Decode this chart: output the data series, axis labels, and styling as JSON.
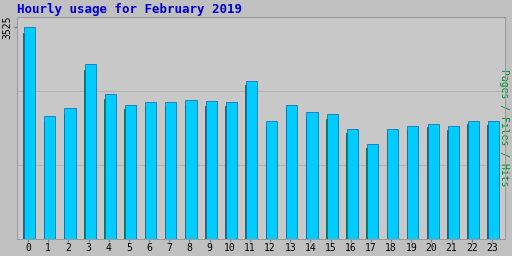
{
  "title": "Hourly usage for February 2019",
  "title_color": "#0000cc",
  "title_fontsize": 9,
  "ylabel_right": "Pages / Files / Hits",
  "hours": [
    0,
    1,
    2,
    3,
    4,
    5,
    6,
    7,
    8,
    9,
    10,
    11,
    12,
    13,
    14,
    15,
    16,
    17,
    18,
    19,
    20,
    21,
    22,
    23
  ],
  "pages": [
    3525,
    2050,
    2180,
    2920,
    2420,
    2240,
    2290,
    2290,
    2320,
    2300,
    2290,
    2640,
    1960,
    2240,
    2110,
    2080,
    1830,
    1580,
    1840,
    1880,
    1920,
    1880,
    1970,
    1960
  ],
  "files": [
    3440,
    1960,
    2090,
    2820,
    2330,
    2160,
    2210,
    2210,
    2240,
    2220,
    2210,
    2560,
    1880,
    2160,
    2030,
    2000,
    1760,
    1510,
    1760,
    1820,
    1860,
    1820,
    1910,
    1900
  ],
  "bar_color_pages": "#00ccff",
  "bar_color_files": "#008866",
  "bar_edgecolor_pages": "#0066aa",
  "bar_edgecolor_files": "#005544",
  "background_color": "#c0c0c0",
  "plot_bg_color": "#c8c8c8",
  "ylim": [
    0,
    3700
  ],
  "ytick_value": 3525,
  "ytick_label": "3525",
  "grid_color": "#b0b0b0",
  "ylabel_color": "#008833",
  "ylabel_fontsize": 7,
  "axis_label_fontsize": 7,
  "figwidth": 5.12,
  "figheight": 2.56,
  "dpi": 100
}
